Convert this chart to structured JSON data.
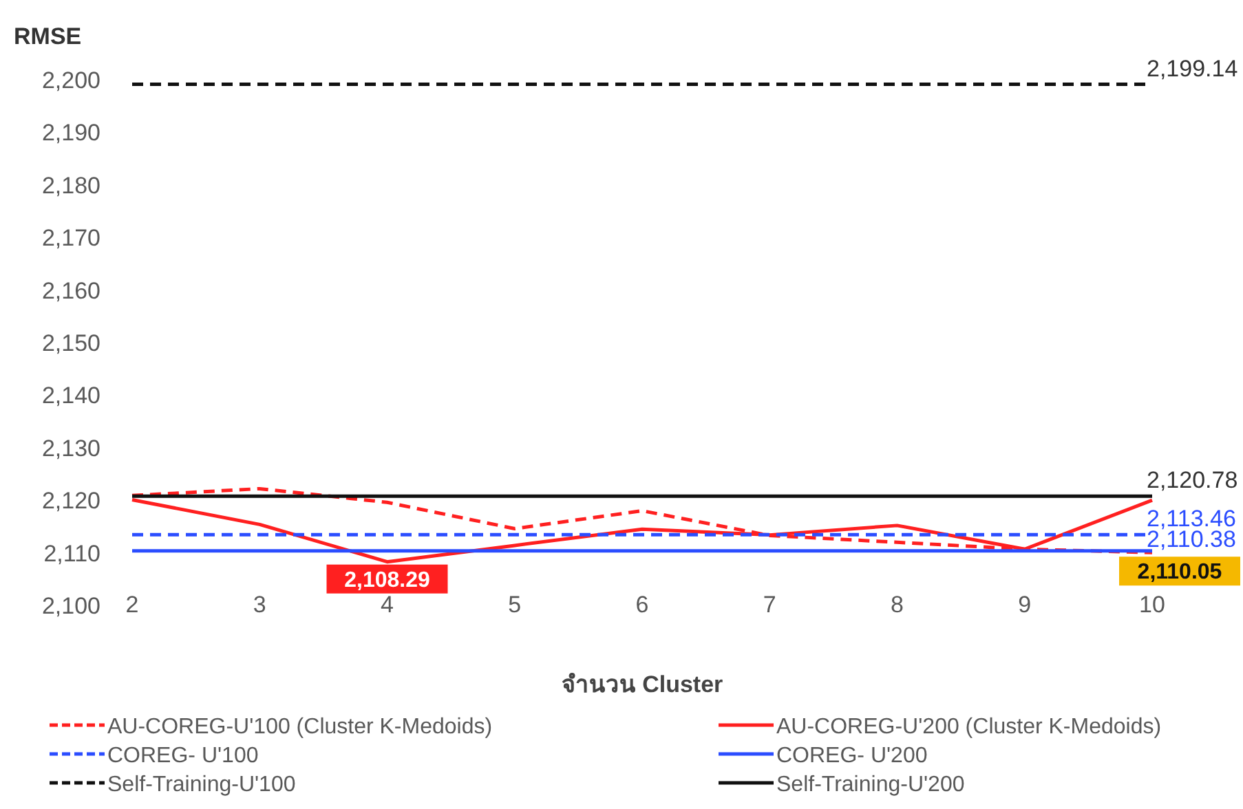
{
  "chart_data": {
    "type": "line",
    "ylabel": "RMSE",
    "xlabel": "จำนวน Cluster",
    "categories": [
      "2",
      "3",
      "4",
      "5",
      "6",
      "7",
      "8",
      "9",
      "10"
    ],
    "ylim": [
      2100,
      2200
    ],
    "yticks": [
      {
        "value": 2100,
        "label": "2,100"
      },
      {
        "value": 2110,
        "label": "2,110"
      },
      {
        "value": 2120,
        "label": "2,120"
      },
      {
        "value": 2130,
        "label": "2,130"
      },
      {
        "value": 2140,
        "label": "2,140"
      },
      {
        "value": 2150,
        "label": "2,150"
      },
      {
        "value": 2160,
        "label": "2,160"
      },
      {
        "value": 2170,
        "label": "2,170"
      },
      {
        "value": 2180,
        "label": "2,180"
      },
      {
        "value": 2190,
        "label": "2,190"
      },
      {
        "value": 2200,
        "label": "2,200"
      }
    ],
    "grid": false,
    "legend": "bottom",
    "marker": "none",
    "series": [
      {
        "name": "AU-COREG-U'100 (Cluster K-Medoids)",
        "color": "#ff2020",
        "line_style": "dashed",
        "values": [
          2120.9,
          2122.2,
          2119.6,
          2114.6,
          2118.0,
          2113.3,
          2112.0,
          2110.7,
          2110.05
        ],
        "value_labels": [
          null,
          null,
          null,
          null,
          null,
          null,
          null,
          null,
          "2,110.05"
        ]
      },
      {
        "name": "AU-COREG-U'200 (Cluster K-Medoids)",
        "color": "#ff2020",
        "line_style": "solid",
        "values": [
          2120.1,
          2115.4,
          2108.29,
          2111.4,
          2114.5,
          2113.4,
          2115.2,
          2110.7,
          2120.0
        ],
        "value_labels": [
          null,
          null,
          "2,108.29",
          null,
          null,
          null,
          null,
          null,
          null
        ]
      },
      {
        "name": "COREG- U'100",
        "color": "#2b4dff",
        "line_style": "dashed",
        "values": [
          2113.46,
          2113.46,
          2113.46,
          2113.46,
          2113.46,
          2113.46,
          2113.46,
          2113.46,
          2113.46
        ],
        "value_labels": [
          null,
          null,
          null,
          null,
          null,
          null,
          null,
          null,
          "2,113.46"
        ]
      },
      {
        "name": "COREG- U'200",
        "color": "#2b4dff",
        "line_style": "solid",
        "values": [
          2110.38,
          2110.38,
          2110.38,
          2110.38,
          2110.38,
          2110.38,
          2110.38,
          2110.38,
          2110.38
        ],
        "value_labels": [
          null,
          null,
          null,
          null,
          null,
          null,
          null,
          null,
          "2,110.38"
        ]
      },
      {
        "name": "Self-Training-U'100",
        "color": "#111111",
        "line_style": "dashed",
        "values": [
          2199.14,
          2199.14,
          2199.14,
          2199.14,
          2199.14,
          2199.14,
          2199.14,
          2199.14,
          2199.14
        ],
        "value_labels": [
          null,
          null,
          null,
          null,
          null,
          null,
          null,
          null,
          "2,199.14"
        ]
      },
      {
        "name": "Self-Training-U'200",
        "color": "#111111",
        "line_style": "solid",
        "values": [
          2120.78,
          2120.78,
          2120.78,
          2120.78,
          2120.78,
          2120.78,
          2120.78,
          2120.78,
          2120.78
        ],
        "value_labels": [
          null,
          null,
          null,
          null,
          null,
          null,
          null,
          null,
          "2,120.78"
        ]
      }
    ]
  }
}
